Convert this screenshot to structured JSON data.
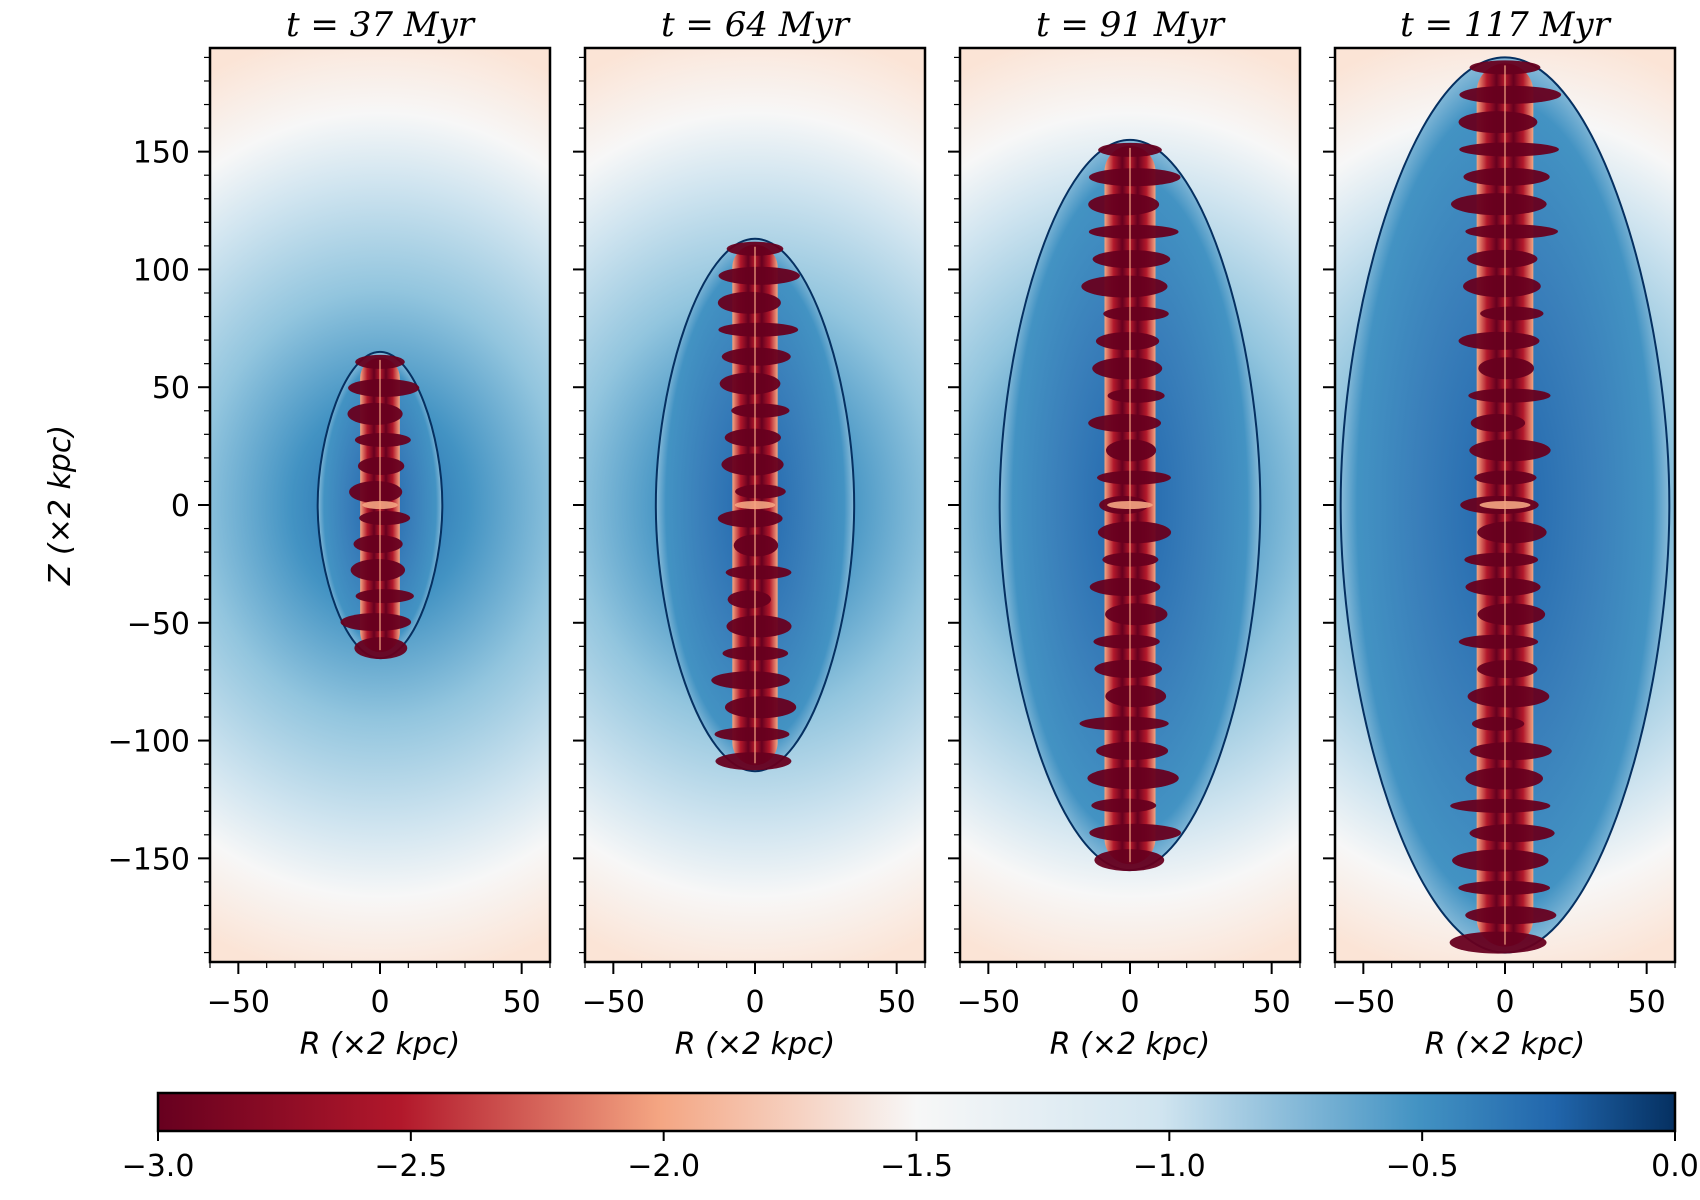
{
  "chart_data": {
    "type": "heatmap",
    "panels": [
      {
        "title": "t = 37 Myr",
        "time_myr": 37,
        "bubble_half_height": 65,
        "bubble_half_width": 22,
        "jet_half_width": 7
      },
      {
        "title": "t = 64 Myr",
        "time_myr": 64,
        "bubble_half_height": 113,
        "bubble_half_width": 35,
        "jet_half_width": 8
      },
      {
        "title": "t = 91 Myr",
        "time_myr": 91,
        "bubble_half_height": 155,
        "bubble_half_width": 46,
        "jet_half_width": 9
      },
      {
        "title": "t = 117 Myr",
        "time_myr": 117,
        "bubble_half_height": 190,
        "bubble_half_width": 58,
        "jet_half_width": 10
      }
    ],
    "xlabel": "R (×2 kpc)",
    "ylabel": "Z (×2 kpc)",
    "xlim": [
      -60,
      60
    ],
    "ylim": [
      -194,
      194
    ],
    "x_ticks": [
      -50,
      0,
      50
    ],
    "x_tick_labels": [
      "−50",
      "0",
      "50"
    ],
    "y_ticks": [
      -150,
      -100,
      -50,
      0,
      50,
      100,
      150
    ],
    "y_tick_labels": [
      "−150",
      "−100",
      "−50",
      "0",
      "50",
      "100",
      "150"
    ],
    "colorbar": {
      "colormap": "RdBu",
      "range": [
        -3.0,
        0.0
      ],
      "ticks": [
        -3.0,
        -2.5,
        -2.0,
        -1.5,
        -1.0,
        -0.5,
        0.0
      ],
      "tick_labels": [
        "−3.0",
        "−2.5",
        "−2.0",
        "−1.5",
        "−1.0",
        "−0.5",
        "0.0"
      ]
    },
    "colors": {
      "deep_red": "#67001f",
      "red": "#b2182b",
      "salmon": "#f4a582",
      "light_peach": "#fbe4d6",
      "white": "#f7f7f7",
      "light_blue": "#d1e5f0",
      "mid_blue": "#4393c3",
      "blue": "#2166ac",
      "deep_blue": "#053061"
    }
  }
}
